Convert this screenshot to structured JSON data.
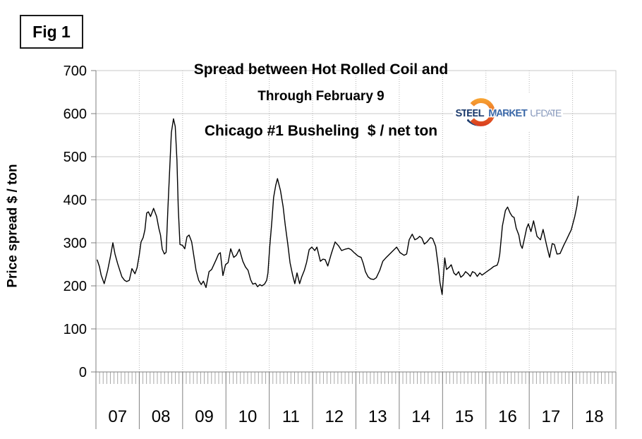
{
  "fig_label": "Fig 1",
  "title": {
    "line1": "Spread between Hot Rolled Coil and",
    "line2": "Chicago #1 Busheling  $ / net ton"
  },
  "subtitle": "Through February 9",
  "y_axis": {
    "title": "Price spread $ / ton",
    "ticks": [
      700,
      600,
      500,
      400,
      300,
      200,
      100,
      0
    ]
  },
  "x_axis": {
    "year_labels": [
      "07",
      "08",
      "09",
      "10",
      "11",
      "12",
      "13",
      "14",
      "15",
      "16",
      "17",
      "18"
    ]
  },
  "logo": {
    "word1": "STEEL",
    "word2": "MARKET",
    "word3": "UPDATE",
    "word1_color": "#1e3c6e",
    "word2_color": "#3c69a8",
    "word3_color": "#8496ba",
    "crescent_top_color": "#f9a733",
    "crescent_bottom_color": "#d93a1e",
    "swoosh_color": "#1e3c6e"
  },
  "colors": {
    "series_line": "#000000",
    "gridline": "#c9c9c9",
    "dotted_gridline": "#b3b3b3",
    "axis": "#7f7f7f",
    "minor_tick": "#a8a8a8",
    "text": "#000000"
  },
  "chart_data": {
    "type": "line",
    "title": "Spread between Hot Rolled Coil and Chicago #1 Busheling  $ / net ton",
    "subtitle": "Through February 9",
    "xlabel": "",
    "ylabel": "Price spread $ / ton",
    "x_unit": "fractional year",
    "x_range": [
      2007,
      2019
    ],
    "ylim": [
      0,
      700
    ],
    "y_tick_step": 100,
    "grid": "horizontal solid, vertical dotted at year boundaries, monthly minor ticks below axis",
    "legend": "none",
    "series": [
      {
        "points": [
          [
            2007.03,
            260
          ],
          [
            2007.08,
            245
          ],
          [
            2007.12,
            225
          ],
          [
            2007.19,
            205
          ],
          [
            2007.27,
            236
          ],
          [
            2007.33,
            266
          ],
          [
            2007.39,
            300
          ],
          [
            2007.44,
            274
          ],
          [
            2007.5,
            252
          ],
          [
            2007.55,
            236
          ],
          [
            2007.6,
            221
          ],
          [
            2007.66,
            213
          ],
          [
            2007.71,
            210
          ],
          [
            2007.77,
            213
          ],
          [
            2007.83,
            240
          ],
          [
            2007.9,
            228
          ],
          [
            2007.95,
            242
          ],
          [
            2008.0,
            272
          ],
          [
            2008.04,
            302
          ],
          [
            2008.09,
            312
          ],
          [
            2008.13,
            330
          ],
          [
            2008.17,
            369
          ],
          [
            2008.21,
            372
          ],
          [
            2008.26,
            361
          ],
          [
            2008.33,
            380
          ],
          [
            2008.4,
            361
          ],
          [
            2008.45,
            334
          ],
          [
            2008.49,
            318
          ],
          [
            2008.53,
            285
          ],
          [
            2008.58,
            274
          ],
          [
            2008.62,
            278
          ],
          [
            2008.66,
            380
          ],
          [
            2008.7,
            466
          ],
          [
            2008.74,
            556
          ],
          [
            2008.79,
            588
          ],
          [
            2008.83,
            570
          ],
          [
            2008.87,
            492
          ],
          [
            2008.9,
            380
          ],
          [
            2008.94,
            296
          ],
          [
            2009.0,
            294
          ],
          [
            2009.05,
            286
          ],
          [
            2009.1,
            314
          ],
          [
            2009.15,
            318
          ],
          [
            2009.21,
            302
          ],
          [
            2009.26,
            269
          ],
          [
            2009.31,
            236
          ],
          [
            2009.37,
            213
          ],
          [
            2009.43,
            203
          ],
          [
            2009.48,
            211
          ],
          [
            2009.54,
            196
          ],
          [
            2009.61,
            233
          ],
          [
            2009.67,
            238
          ],
          [
            2009.72,
            249
          ],
          [
            2009.78,
            262
          ],
          [
            2009.83,
            274
          ],
          [
            2009.87,
            277
          ],
          [
            2009.93,
            224
          ],
          [
            2009.99,
            249
          ],
          [
            2010.05,
            254
          ],
          [
            2010.11,
            286
          ],
          [
            2010.18,
            266
          ],
          [
            2010.24,
            271
          ],
          [
            2010.31,
            285
          ],
          [
            2010.39,
            257
          ],
          [
            2010.45,
            244
          ],
          [
            2010.51,
            236
          ],
          [
            2010.57,
            214
          ],
          [
            2010.62,
            204
          ],
          [
            2010.68,
            206
          ],
          [
            2010.73,
            198
          ],
          [
            2010.78,
            203
          ],
          [
            2010.83,
            200
          ],
          [
            2010.89,
            204
          ],
          [
            2010.94,
            213
          ],
          [
            2010.97,
            230
          ],
          [
            2011.01,
            290
          ],
          [
            2011.06,
            351
          ],
          [
            2011.1,
            405
          ],
          [
            2011.15,
            434
          ],
          [
            2011.19,
            449
          ],
          [
            2011.26,
            421
          ],
          [
            2011.32,
            384
          ],
          [
            2011.37,
            340
          ],
          [
            2011.43,
            295
          ],
          [
            2011.48,
            254
          ],
          [
            2011.54,
            225
          ],
          [
            2011.59,
            205
          ],
          [
            2011.64,
            230
          ],
          [
            2011.7,
            205
          ],
          [
            2011.75,
            221
          ],
          [
            2011.81,
            236
          ],
          [
            2011.86,
            254
          ],
          [
            2011.92,
            284
          ],
          [
            2011.98,
            290
          ],
          [
            2012.05,
            282
          ],
          [
            2012.1,
            290
          ],
          [
            2012.18,
            257
          ],
          [
            2012.24,
            262
          ],
          [
            2012.29,
            261
          ],
          [
            2012.35,
            246
          ],
          [
            2012.43,
            274
          ],
          [
            2012.52,
            302
          ],
          [
            2012.6,
            293
          ],
          [
            2012.67,
            282
          ],
          [
            2012.75,
            285
          ],
          [
            2012.83,
            287
          ],
          [
            2012.89,
            284
          ],
          [
            2012.96,
            277
          ],
          [
            2013.05,
            269
          ],
          [
            2013.12,
            266
          ],
          [
            2013.17,
            252
          ],
          [
            2013.22,
            233
          ],
          [
            2013.28,
            221
          ],
          [
            2013.34,
            216
          ],
          [
            2013.41,
            215
          ],
          [
            2013.47,
            219
          ],
          [
            2013.55,
            236
          ],
          [
            2013.62,
            257
          ],
          [
            2013.7,
            266
          ],
          [
            2013.78,
            274
          ],
          [
            2013.86,
            282
          ],
          [
            2013.94,
            290
          ],
          [
            2014.02,
            277
          ],
          [
            2014.11,
            271
          ],
          [
            2014.17,
            274
          ],
          [
            2014.23,
            307
          ],
          [
            2014.3,
            320
          ],
          [
            2014.36,
            307
          ],
          [
            2014.42,
            310
          ],
          [
            2014.47,
            315
          ],
          [
            2014.52,
            311
          ],
          [
            2014.58,
            297
          ],
          [
            2014.64,
            302
          ],
          [
            2014.72,
            312
          ],
          [
            2014.77,
            310
          ],
          [
            2014.84,
            292
          ],
          [
            2014.9,
            246
          ],
          [
            2014.94,
            208
          ],
          [
            2014.99,
            180
          ],
          [
            2015.05,
            265
          ],
          [
            2015.09,
            238
          ],
          [
            2015.15,
            243
          ],
          [
            2015.2,
            249
          ],
          [
            2015.26,
            230
          ],
          [
            2015.31,
            225
          ],
          [
            2015.37,
            233
          ],
          [
            2015.42,
            220
          ],
          [
            2015.48,
            225
          ],
          [
            2015.53,
            233
          ],
          [
            2015.59,
            228
          ],
          [
            2015.64,
            222
          ],
          [
            2015.69,
            233
          ],
          [
            2015.75,
            230
          ],
          [
            2015.8,
            222
          ],
          [
            2015.86,
            230
          ],
          [
            2015.91,
            225
          ],
          [
            2015.98,
            230
          ],
          [
            2016.05,
            235
          ],
          [
            2016.12,
            240
          ],
          [
            2016.18,
            245
          ],
          [
            2016.26,
            248
          ],
          [
            2016.29,
            257
          ],
          [
            2016.32,
            274
          ],
          [
            2016.38,
            339
          ],
          [
            2016.45,
            375
          ],
          [
            2016.5,
            383
          ],
          [
            2016.56,
            369
          ],
          [
            2016.61,
            361
          ],
          [
            2016.65,
            359
          ],
          [
            2016.7,
            334
          ],
          [
            2016.76,
            318
          ],
          [
            2016.8,
            295
          ],
          [
            2016.84,
            287
          ],
          [
            2016.89,
            310
          ],
          [
            2016.94,
            334
          ],
          [
            2016.98,
            344
          ],
          [
            2017.04,
            326
          ],
          [
            2017.1,
            351
          ],
          [
            2017.18,
            315
          ],
          [
            2017.26,
            307
          ],
          [
            2017.32,
            331
          ],
          [
            2017.4,
            295
          ],
          [
            2017.47,
            266
          ],
          [
            2017.53,
            298
          ],
          [
            2017.58,
            296
          ],
          [
            2017.64,
            274
          ],
          [
            2017.71,
            275
          ],
          [
            2017.8,
            295
          ],
          [
            2017.86,
            307
          ],
          [
            2017.92,
            320
          ],
          [
            2017.97,
            330
          ],
          [
            2018.05,
            361
          ],
          [
            2018.1,
            385
          ],
          [
            2018.13,
            408
          ]
        ]
      }
    ]
  }
}
